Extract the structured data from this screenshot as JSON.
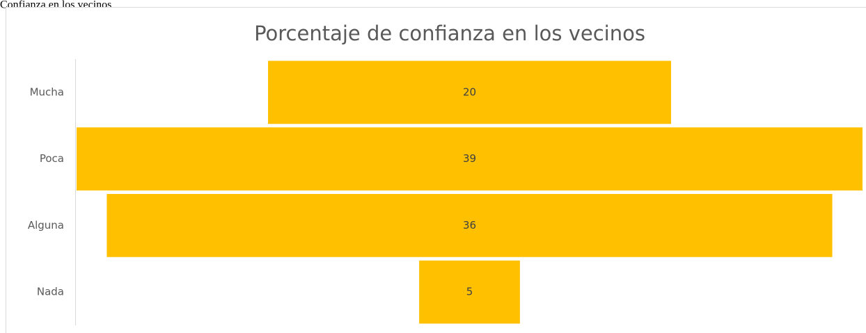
{
  "heading": "Confianza en los vecinos",
  "chart_data": {
    "type": "funnel",
    "title": "Porcentaje de confianza en los vecinos",
    "categories": [
      "Mucha",
      "Poca",
      "Alguna",
      "Nada"
    ],
    "values": [
      20,
      39,
      36,
      5
    ],
    "color": "#ffc000"
  }
}
